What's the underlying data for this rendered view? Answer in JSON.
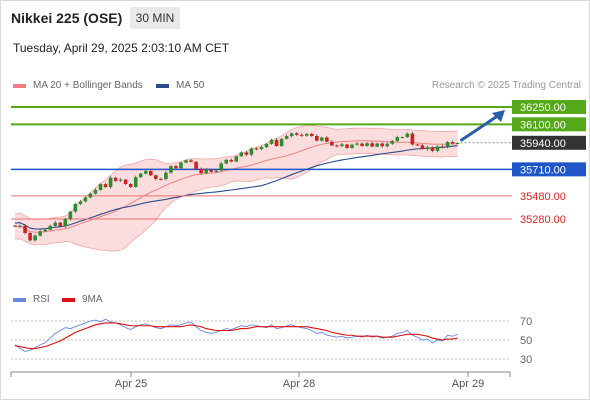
{
  "header": {
    "title": "Nikkei 225 (OSE)",
    "timeframe": "30 MIN",
    "datetime": "Tuesday, April 29, 2025 2:03:10 AM CET"
  },
  "legend": {
    "bollinger": {
      "label": "MA 20 + Bollinger Bands",
      "color": "#f08080"
    },
    "ma50": {
      "label": "MA 50",
      "color": "#2a4b8d"
    },
    "credit": "Research © 2025 Trading Central"
  },
  "rsi_legend": {
    "rsi": {
      "label": "RSI",
      "color": "#6688dd"
    },
    "ma9": {
      "label": "9MA",
      "color": "#dd1111"
    }
  },
  "colors": {
    "up_candle": "#2e8b2e",
    "down_candle": "#cc2222",
    "resistance": "#55a818",
    "pivot": "#1f55c8",
    "support": "#ee7070",
    "arrow": "#2a5ca8",
    "current": "#333333"
  },
  "chart_data": [
    {
      "type": "candlestick",
      "title": "Nikkei 225 (OSE)",
      "interval": "30 MIN",
      "ylim": [
        35000,
        36400
      ],
      "x_ticks": [
        "Apr 25",
        "Apr 28",
        "Apr 29"
      ],
      "levels": [
        {
          "value": "36250.00",
          "kind": "resistance"
        },
        {
          "value": "36100.00",
          "kind": "resistance"
        },
        {
          "value": "35940.00",
          "kind": "current"
        },
        {
          "value": "35710.00",
          "kind": "pivot"
        },
        {
          "value": "35480.00",
          "kind": "support"
        },
        {
          "value": "35280.00",
          "kind": "support"
        }
      ],
      "series": [
        {
          "name": "MA 20 + Bollinger Bands",
          "type": "band"
        },
        {
          "name": "MA 50",
          "type": "line"
        }
      ],
      "close": [
        35215,
        35222,
        35159,
        35095,
        35136,
        35174,
        35187,
        35220,
        35248,
        35215,
        35278,
        35344,
        35410,
        35432,
        35467,
        35499,
        35531,
        35582,
        35556,
        35637,
        35611,
        35621,
        35583,
        35557,
        35642,
        35673,
        35696,
        35658,
        35627,
        35626,
        35681,
        35738,
        35720,
        35769,
        35788,
        35775,
        35715,
        35677,
        35707,
        35689,
        35700,
        35761,
        35792,
        35778,
        35823,
        35857,
        35837,
        35891,
        35885,
        35903,
        35930,
        35965,
        35912,
        35974,
        35998,
        36022,
        36009,
        36002,
        36017,
        35999,
        35958,
        35986,
        35949,
        35917,
        35913,
        35926,
        35896,
        35924,
        35934,
        35913,
        35936,
        35907,
        35934,
        35910,
        35932,
        35956,
        35989,
        35989,
        36020,
        35925,
        35919,
        35885,
        35901,
        35870,
        35908,
        35901,
        35947,
        35934,
        35938
      ],
      "rsi": {
        "ylim": [
          20,
          80
        ],
        "ticks": [
          70,
          50,
          30
        ],
        "rsi": [
          45,
          41,
          38,
          39,
          42,
          45,
          47,
          52,
          57,
          60,
          63,
          62,
          64,
          66,
          68,
          70,
          71,
          69,
          72,
          69,
          68,
          66,
          63,
          61,
          64,
          66,
          67,
          65,
          63,
          62,
          64,
          66,
          65,
          66,
          68,
          69,
          64,
          60,
          58,
          57,
          58,
          60,
          62,
          61,
          63,
          65,
          64,
          66,
          65,
          64,
          63,
          66,
          62,
          63,
          65,
          66,
          64,
          63,
          62,
          60,
          57,
          58,
          55,
          54,
          53,
          54,
          52,
          53,
          54,
          53,
          55,
          53,
          54,
          52,
          53,
          54,
          57,
          58,
          60,
          55,
          53,
          50,
          51,
          47,
          50,
          49,
          55,
          54,
          56
        ],
        "ma9": [
          44,
          43,
          42,
          41,
          41,
          42,
          43,
          45,
          47,
          49,
          52,
          55,
          58,
          60,
          62,
          64,
          66,
          67,
          68,
          68,
          68,
          67,
          66,
          65,
          65,
          65,
          65,
          65,
          64,
          64,
          64,
          64,
          64,
          64,
          65,
          66,
          65,
          64,
          62,
          61,
          60,
          60,
          60,
          60,
          61,
          62,
          62,
          63,
          64,
          64,
          64,
          64,
          64,
          64,
          64,
          64,
          64,
          64,
          64,
          63,
          62,
          61,
          60,
          58,
          57,
          56,
          55,
          55,
          54,
          54,
          54,
          54,
          54,
          53,
          53,
          53,
          54,
          55,
          56,
          56,
          56,
          55,
          54,
          52,
          51,
          50,
          51,
          51,
          52
        ]
      }
    }
  ]
}
